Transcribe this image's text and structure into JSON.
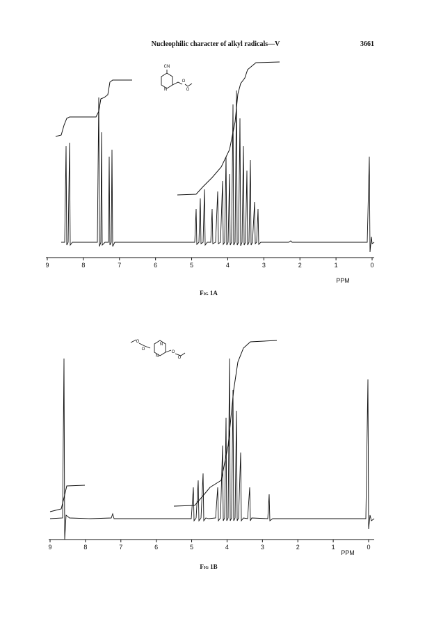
{
  "header": {
    "title": "Nucleophilic character of alkyl radicals—V",
    "page_number": "3661"
  },
  "figures": [
    {
      "caption": "Fig 1A",
      "x_label": "PPM",
      "xlim": [
        9,
        0
      ],
      "xticks": [
        9,
        8,
        7,
        6,
        5,
        4,
        3,
        2,
        1,
        0
      ],
      "structure_labels": [
        "CN",
        "N",
        "O",
        "O"
      ]
    },
    {
      "caption": "Fig 1B",
      "x_label": "PPM",
      "xlim": [
        9,
        0
      ],
      "xticks": [
        9,
        8,
        7,
        6,
        5,
        4,
        3,
        2,
        1,
        0
      ],
      "structure_labels": [
        "O",
        "O",
        "N",
        "N",
        "O",
        "O"
      ]
    }
  ]
}
